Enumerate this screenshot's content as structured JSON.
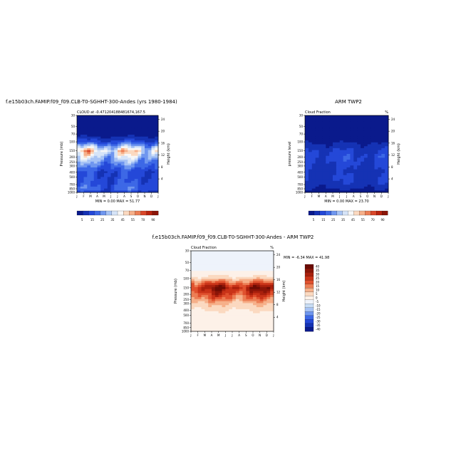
{
  "figure": {
    "title_top_left": "f.e15b03ch.FAMIP.f09_f09.CLB-T0-SGHHT-300-Andes (yrs 1980-1984)",
    "title_top_right": "ARM TWP2",
    "title_bottom": "f.e15b03ch.FAMIP.f09_f09.CLB-T0-SGHHT-300-Andes - ARM TWP2"
  },
  "colors": {
    "dark_blue": "#0a1a8c",
    "blue": "#2448d8",
    "light_blue": "#c8ddf5",
    "peach": "#fbd9c0",
    "orange": "#e8653a",
    "dark_red": "#9b1b0e"
  },
  "chart_data": [
    {
      "type": "heatmap",
      "panel": "model",
      "subtitle": "CLOUD at -0.471204188481674,167.5",
      "xlabel": "",
      "ylabel": "Pressure (mb)",
      "ylabel_right": "Height (km)",
      "x_ticks": [
        "J",
        "F",
        "M",
        "A",
        "M",
        "J",
        "J",
        "A",
        "S",
        "O",
        "N",
        "D",
        "J"
      ],
      "y_ticks": [
        "30",
        "50",
        "70",
        "100",
        "150",
        "200",
        "250",
        "300",
        "400",
        "500",
        "700",
        "850",
        "1000"
      ],
      "y_ticks_right": [
        "24",
        "20",
        "16",
        "12",
        "8",
        "4"
      ],
      "stats": "MIN =   0.00 MAX =  51.77",
      "colorbar_labels": [
        "5",
        "15",
        "25",
        "35",
        "45",
        "55",
        "70",
        "90"
      ],
      "ylim": [
        1000,
        30
      ],
      "profile_pressure": [
        30,
        70,
        100,
        150,
        200,
        300,
        400,
        500,
        700,
        850,
        1000
      ],
      "profile_values": [
        1,
        2,
        12,
        40,
        30,
        18,
        12,
        12,
        14,
        16,
        10
      ]
    },
    {
      "type": "heatmap",
      "panel": "observed",
      "subtitle": "Cloud Fraction",
      "subtitle_right": "%",
      "ylabel": "pressure level",
      "ylabel_right": "Height (km)",
      "x_ticks": [
        "J",
        "F",
        "M",
        "A",
        "M",
        "J",
        "J",
        "A",
        "S",
        "O",
        "N",
        "D",
        "J"
      ],
      "y_ticks": [
        "30",
        "50",
        "70",
        "100",
        "150",
        "200",
        "250",
        "300",
        "400",
        "500",
        "700",
        "850",
        "1000"
      ],
      "y_ticks_right": [
        "24",
        "20",
        "16",
        "12",
        "8",
        "4"
      ],
      "stats": "MIN =   0.00 MAX =  23.70",
      "colorbar_labels": [
        "5",
        "15",
        "25",
        "35",
        "45",
        "55",
        "70",
        "90"
      ],
      "ylim": [
        1000,
        30
      ],
      "profile_pressure": [
        30,
        70,
        100,
        150,
        200,
        300,
        400,
        500,
        700,
        850,
        1000
      ],
      "profile_values": [
        1,
        1,
        4,
        10,
        12,
        10,
        8,
        10,
        8,
        5,
        2
      ]
    },
    {
      "type": "heatmap",
      "panel": "difference",
      "subtitle": "Cloud Fraction",
      "subtitle_right": "%",
      "ylabel": "Pressure (mb)",
      "ylabel_right": "Height (km)",
      "x_ticks": [
        "J",
        "F",
        "M",
        "A",
        "M",
        "J",
        "J",
        "A",
        "S",
        "O",
        "N",
        "D",
        "J"
      ],
      "y_ticks": [
        "30",
        "50",
        "70",
        "100",
        "150",
        "200",
        "250",
        "300",
        "400",
        "500",
        "700",
        "850",
        "1000"
      ],
      "y_ticks_right": [
        "24",
        "20",
        "16",
        "12",
        "8",
        "4"
      ],
      "stats": "MIN =  -6.34 MAX =  41.98",
      "colorbar_labels": [
        "40",
        "35",
        "30",
        "25",
        "20",
        "15",
        "10",
        "5",
        "0",
        "-5",
        "-10",
        "-15",
        "-20",
        "-25",
        "-30",
        "-35",
        "-40"
      ],
      "ylim": [
        1000,
        30
      ],
      "profile_pressure": [
        30,
        70,
        100,
        150,
        200,
        300,
        400,
        500,
        700,
        850,
        1000
      ],
      "profile_values": [
        -3,
        -2,
        8,
        35,
        25,
        10,
        5,
        3,
        2,
        1,
        0
      ]
    }
  ]
}
